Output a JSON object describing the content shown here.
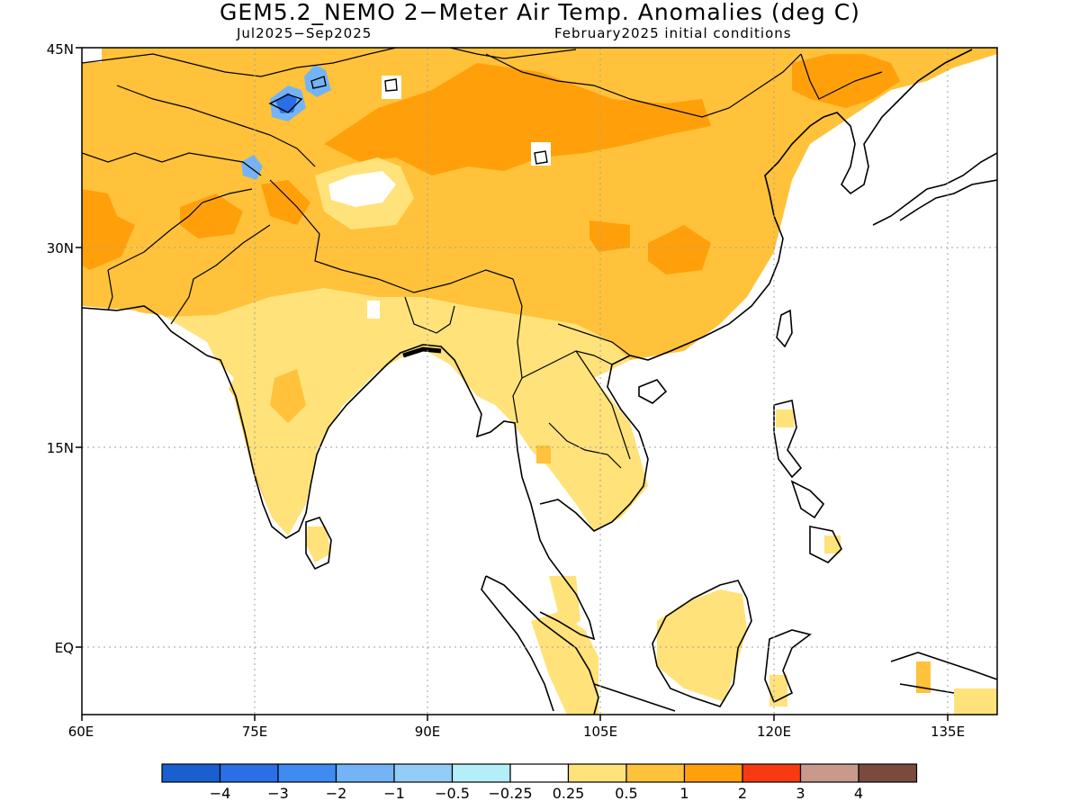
{
  "title": "GEM5.2_NEMO 2−Meter Air Temp. Anomalies (deg C)",
  "subtitle_left": "Jul2025−Sep2025",
  "subtitle_right": "February2025 initial conditions",
  "lat_labels": [
    "45N",
    "30N",
    "15N",
    "EQ"
  ],
  "lon_labels": [
    "60E",
    "75E",
    "90E",
    "105E",
    "120E",
    "135E"
  ],
  "legend": {
    "colors": [
      "#1a5fd0",
      "#2a6fe8",
      "#3e8bf2",
      "#74b4f6",
      "#94ccf8",
      "#b4eef8",
      "#ffffff",
      "#ffe27a",
      "#ffc23a",
      "#ffa00a",
      "#f73a12",
      "#c99a8c",
      "#7a4a3e"
    ],
    "labels": [
      "−4",
      "−3",
      "−2",
      "−1",
      "−0.5",
      "−0.25",
      "0.25",
      "0.5",
      "1",
      "2",
      "3",
      "4"
    ]
  },
  "map": {
    "lon_range": [
      60,
      140
    ],
    "lat_range": [
      -5,
      45
    ],
    "grid": true
  }
}
